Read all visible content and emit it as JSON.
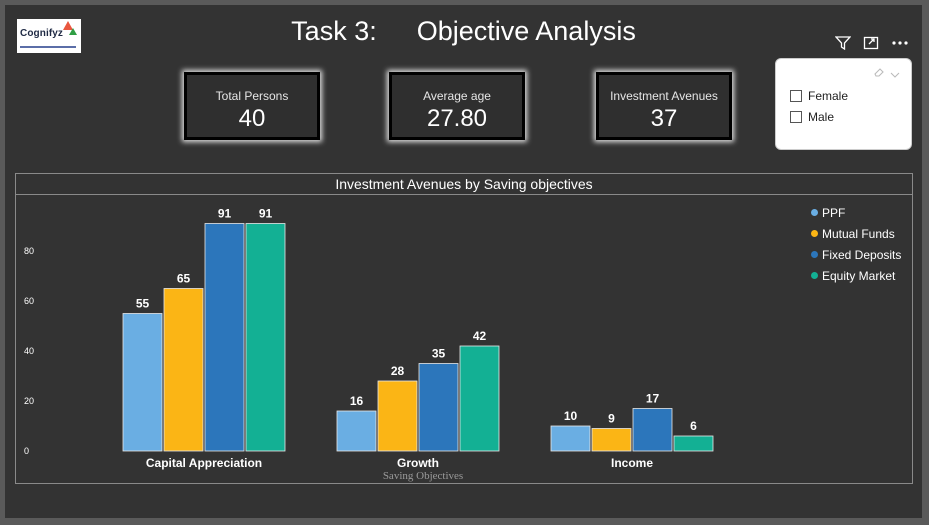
{
  "header": {
    "logo_text": "Cognifyz",
    "title_part1": "Task 3:",
    "title_part2": "Objective Analysis",
    "icons": [
      "filter-icon",
      "focus-mode-icon",
      "more-options-icon"
    ]
  },
  "cards": [
    {
      "label": "Total Persons",
      "value": "40"
    },
    {
      "label": "Average age",
      "value": "27.80"
    },
    {
      "label": "Investment Avenues",
      "value": "37"
    }
  ],
  "slicer": {
    "options": [
      "Female",
      "Male"
    ]
  },
  "chart_data": {
    "type": "bar",
    "title": "Investment Avenues by Saving objectives",
    "xlabel": "Saving Objectives",
    "ylabel": "",
    "categories": [
      "Capital Appreciation",
      "Growth",
      "Income"
    ],
    "series": [
      {
        "name": "PPF",
        "color": "#6aaee3",
        "values": [
          55,
          16,
          10
        ]
      },
      {
        "name": "Mutual Funds",
        "color": "#fbb515",
        "values": [
          65,
          28,
          9
        ]
      },
      {
        "name": "Fixed Deposits",
        "color": "#2c76bb",
        "values": [
          91,
          35,
          17
        ]
      },
      {
        "name": "Equity Market",
        "color": "#13b094",
        "values": [
          91,
          42,
          6
        ]
      }
    ],
    "yticks": [
      0,
      20,
      40,
      60,
      80
    ],
    "ylim": [
      0,
      100
    ],
    "grid": false,
    "legend": "right"
  }
}
